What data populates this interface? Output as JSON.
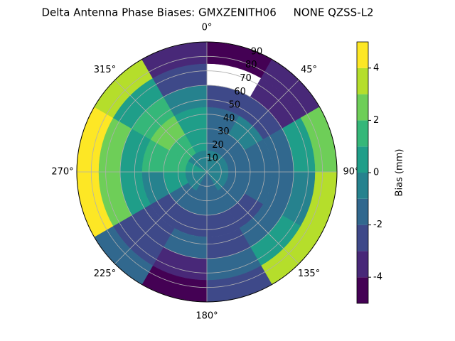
{
  "chart_data": {
    "type": "polar_contour",
    "title": "Delta Antenna Phase Biases: GMXZENITH06     NONE QZSS-L2",
    "theta": [
      15,
      45,
      75,
      105,
      135,
      165,
      195,
      225,
      255,
      285,
      315,
      345
    ],
    "r_bins": [
      0,
      15,
      30,
      45,
      60,
      75,
      90
    ],
    "values": [
      [
        -0.5,
        -1,
        -1.5,
        -2.5,
        null,
        -4.2
      ],
      [
        -0.5,
        -1,
        -0.5,
        -2,
        -3,
        -3.5
      ],
      [
        -0.5,
        -1,
        -1.5,
        -1,
        1,
        3
      ],
      [
        -0.5,
        -1,
        -1.5,
        -1.5,
        0,
        3.5
      ],
      [
        -0.5,
        -1.5,
        -2,
        -1.5,
        0.5,
        4
      ],
      [
        -1,
        -1.5,
        -2.5,
        -2,
        -1.5,
        -2.5
      ],
      [
        -1,
        -1.5,
        -2,
        -1.5,
        -3,
        -4.3
      ],
      [
        -0.5,
        -1,
        -2.5,
        -2.5,
        -2,
        -1
      ],
      [
        0,
        0.5,
        0,
        0.5,
        2.5,
        4.3
      ],
      [
        0.5,
        1.5,
        2,
        1,
        2.5,
        4.5
      ],
      [
        0,
        1.5,
        2.5,
        1.5,
        0.5,
        3.5
      ],
      [
        -0.5,
        0.5,
        1,
        -0.5,
        -2,
        -3.5
      ]
    ],
    "rlim": [
      0,
      90
    ],
    "rticks": [
      10,
      20,
      30,
      40,
      50,
      60,
      70,
      80,
      90
    ],
    "thetaticks": [
      {
        "value": 0,
        "label": "0°"
      },
      {
        "value": 45,
        "label": "45°"
      },
      {
        "value": 90,
        "label": "90°"
      },
      {
        "value": 135,
        "label": "135°"
      },
      {
        "value": 180,
        "label": "180°"
      },
      {
        "value": 225,
        "label": "225°"
      },
      {
        "value": 270,
        "label": "270°"
      },
      {
        "value": 315,
        "label": "315°"
      }
    ],
    "levels": [
      -5,
      -4,
      -3,
      -2,
      -1,
      0,
      1,
      2,
      3,
      4,
      5
    ],
    "colors": [
      "#440154",
      "#482878",
      "#3e4989",
      "#31688e",
      "#26828e",
      "#1f9e89",
      "#35b779",
      "#6ece58",
      "#b5de2b",
      "#fde725"
    ],
    "colorbar_label": "Bias (mm)",
    "colorbar_ticks": [
      -4,
      -2,
      0,
      2,
      4
    ],
    "grid": true
  }
}
